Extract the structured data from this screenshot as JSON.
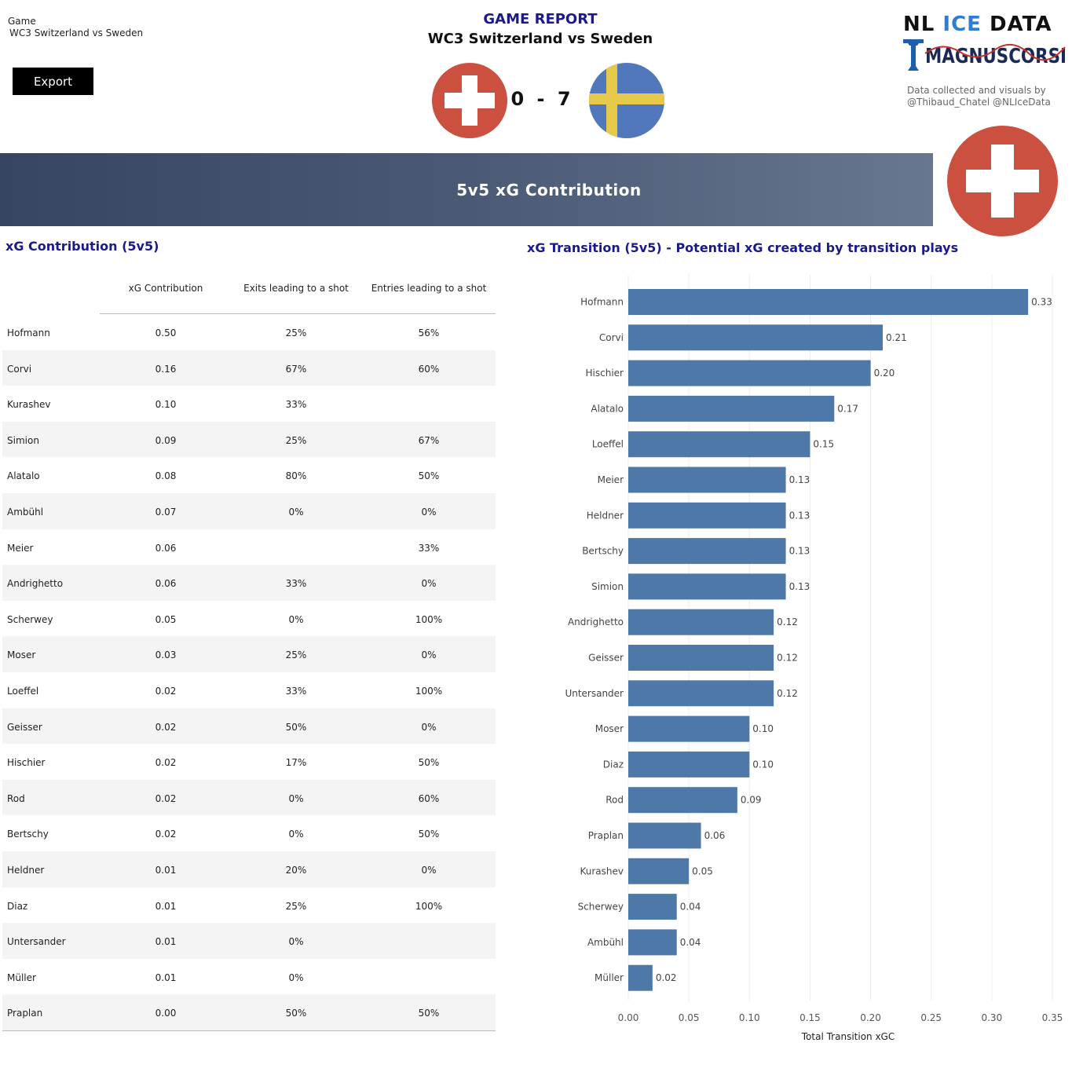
{
  "header": {
    "game_label": "Game",
    "game_name": "WC3 Switzerland vs Sweden",
    "export_label": "Export",
    "report_title": "GAME REPORT",
    "report_subtitle": "WC3 Switzerland vs Sweden",
    "home_flag_icon": "switzerland-flag-icon",
    "away_flag_icon": "sweden-flag-icon",
    "score_home": "0",
    "score_sep": "-",
    "score_away": "7",
    "logo_word1": "NL ",
    "logo_word2": "ICE",
    "logo_word3": " DATA",
    "logo_word4": "MAGNUSCORSI",
    "credits_line1": "Data collected and visuals by",
    "credits_line2": "@Thibaud_Chatel @NLIceData"
  },
  "banner": {
    "title": "5v5 xG Contribution",
    "team_flag_icon": "switzerland-flag-icon"
  },
  "colors": {
    "swiss_red": "#cc5040",
    "sweden_blue": "#5078bb",
    "sweden_yellow": "#e6c84a",
    "bar": "#4e78a7",
    "title_blue": "#1a1a8c"
  },
  "table": {
    "title": "xG Contribution (5v5)",
    "columns": [
      "xG Contribution",
      "Exits leading to a shot",
      "Entries leading to a shot"
    ],
    "rows": [
      {
        "name": "Hofmann",
        "xg": "0.50",
        "exits": "25%",
        "entries": "56%"
      },
      {
        "name": "Corvi",
        "xg": "0.16",
        "exits": "67%",
        "entries": "60%"
      },
      {
        "name": "Kurashev",
        "xg": "0.10",
        "exits": "33%",
        "entries": ""
      },
      {
        "name": "Simion",
        "xg": "0.09",
        "exits": "25%",
        "entries": "67%"
      },
      {
        "name": "Alatalo",
        "xg": "0.08",
        "exits": "80%",
        "entries": "50%"
      },
      {
        "name": "Ambühl",
        "xg": "0.07",
        "exits": "0%",
        "entries": "0%"
      },
      {
        "name": "Meier",
        "xg": "0.06",
        "exits": "",
        "entries": "33%"
      },
      {
        "name": "Andrighetto",
        "xg": "0.06",
        "exits": "33%",
        "entries": "0%"
      },
      {
        "name": "Scherwey",
        "xg": "0.05",
        "exits": "0%",
        "entries": "100%"
      },
      {
        "name": "Moser",
        "xg": "0.03",
        "exits": "25%",
        "entries": "0%"
      },
      {
        "name": "Loeffel",
        "xg": "0.02",
        "exits": "33%",
        "entries": "100%"
      },
      {
        "name": "Geisser",
        "xg": "0.02",
        "exits": "50%",
        "entries": "0%"
      },
      {
        "name": "Hischier",
        "xg": "0.02",
        "exits": "17%",
        "entries": "50%"
      },
      {
        "name": "Rod",
        "xg": "0.02",
        "exits": "0%",
        "entries": "60%"
      },
      {
        "name": "Bertschy",
        "xg": "0.02",
        "exits": "0%",
        "entries": "50%"
      },
      {
        "name": "Heldner",
        "xg": "0.01",
        "exits": "20%",
        "entries": "0%"
      },
      {
        "name": "Diaz",
        "xg": "0.01",
        "exits": "25%",
        "entries": "100%"
      },
      {
        "name": "Untersander",
        "xg": "0.01",
        "exits": "0%",
        "entries": ""
      },
      {
        "name": "Müller",
        "xg": "0.01",
        "exits": "0%",
        "entries": ""
      },
      {
        "name": "Praplan",
        "xg": "0.00",
        "exits": "50%",
        "entries": "50%"
      }
    ]
  },
  "chart_data": {
    "type": "bar",
    "orientation": "horizontal",
    "title": "xG Transition (5v5) - Potential xG created by transition plays",
    "xlabel": "Total Transition xGC",
    "ylabel": "",
    "xlim": [
      0,
      0.35
    ],
    "xticks": [
      "0.00",
      "0.05",
      "0.10",
      "0.15",
      "0.20",
      "0.25",
      "0.30",
      "0.35"
    ],
    "grid": "vertical",
    "categories": [
      "Hofmann",
      "Corvi",
      "Hischier",
      "Alatalo",
      "Loeffel",
      "Meier",
      "Heldner",
      "Bertschy",
      "Simion",
      "Andrighetto",
      "Geisser",
      "Untersander",
      "Moser",
      "Diaz",
      "Rod",
      "Praplan",
      "Kurashev",
      "Scherwey",
      "Ambühl",
      "Müller"
    ],
    "values": [
      0.33,
      0.21,
      0.2,
      0.17,
      0.15,
      0.13,
      0.13,
      0.13,
      0.13,
      0.12,
      0.12,
      0.12,
      0.1,
      0.1,
      0.09,
      0.06,
      0.05,
      0.04,
      0.04,
      0.02
    ],
    "labels": [
      "0.33",
      "0.21",
      "0.20",
      "0.17",
      "0.15",
      "0.13",
      "0.13",
      "0.13",
      "0.13",
      "0.12",
      "0.12",
      "0.12",
      "0.10",
      "0.10",
      "0.09",
      "0.06",
      "0.05",
      "0.04",
      "0.04",
      "0.02"
    ]
  }
}
